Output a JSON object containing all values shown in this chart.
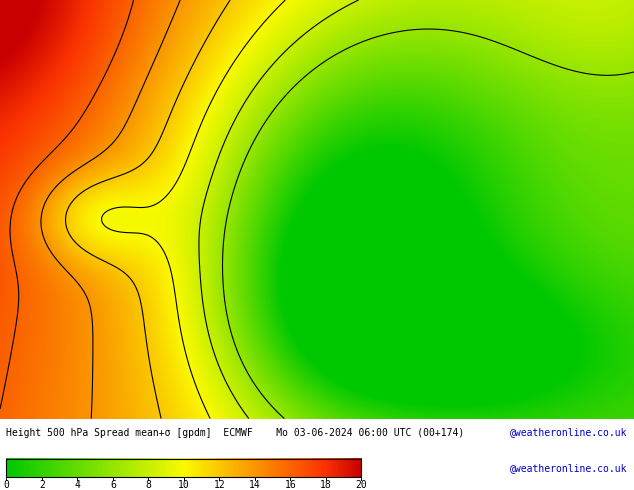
{
  "title": "Height 500 hPa Spread mean+σ [gpdm]  ECMWF    Mo 03-06-2024 06:00 UTC (00+174)",
  "cbar_ticks": [
    0,
    2,
    4,
    6,
    8,
    10,
    12,
    14,
    16,
    18,
    20
  ],
  "cbar_colors": [
    "#00c800",
    "#32d200",
    "#64dc00",
    "#96e600",
    "#c8f000",
    "#fafa00",
    "#fac800",
    "#fa9600",
    "#fa6400",
    "#fa3200",
    "#c80000"
  ],
  "background_color": "#ffffff",
  "text_color": "#000000",
  "watermark": "@weatheronline.co.uk",
  "watermark_color": "#0000cd",
  "vmin": 0,
  "vmax": 20,
  "fig_width": 6.34,
  "fig_height": 4.9,
  "contour_levels": [
    6,
    8,
    10,
    12,
    14,
    16
  ],
  "contour_color": "#000000",
  "contour_linewidth": 0.8
}
